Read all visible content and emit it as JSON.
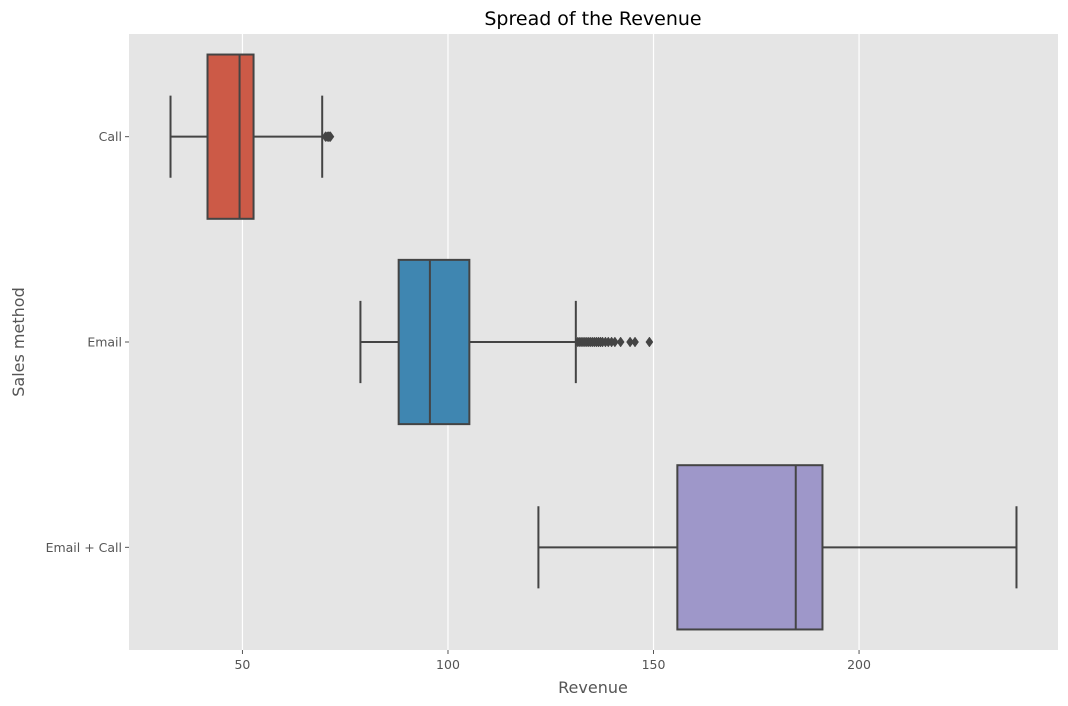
{
  "chart_data": {
    "type": "box",
    "orientation": "horizontal",
    "title": "Spread of the Revenue",
    "xlabel": "Revenue",
    "ylabel": "Sales method",
    "xlim": [
      22.4,
      248.4
    ],
    "xticks": [
      50,
      100,
      150,
      200
    ],
    "grid": true,
    "style": "ggplot",
    "colors": {
      "background": "#e5e5e5",
      "grid": "#ffffff",
      "box_edge": "#444444"
    },
    "categories": [
      "Call",
      "Email",
      "Email + Call"
    ],
    "series": [
      {
        "category": "Call",
        "color": "#cc5a47",
        "whisker_low": 32.5,
        "q1": 41.5,
        "median": 49.3,
        "q3": 52.7,
        "whisker_high": 69.4,
        "outliers": [
          70.2,
          70.6,
          70.9,
          71.1,
          71.4
        ]
      },
      {
        "category": "Email",
        "color": "#3f86b1",
        "whisker_low": 78.7,
        "q1": 88.0,
        "median": 95.6,
        "q3": 105.2,
        "whisker_high": 131.1,
        "outliers": [
          131.6,
          132.1,
          132.6,
          133.1,
          133.6,
          134.1,
          134.6,
          135.1,
          135.6,
          136.1,
          136.6,
          137.1,
          137.6,
          138.3,
          139.0,
          139.8,
          140.6,
          142.0,
          144.3,
          145.5,
          149.0
        ]
      },
      {
        "category": "Email + Call",
        "color": "#9e97c9",
        "whisker_low": 122.0,
        "q1": 155.8,
        "median": 184.6,
        "q3": 191.1,
        "whisker_high": 238.3,
        "outliers": []
      }
    ]
  }
}
